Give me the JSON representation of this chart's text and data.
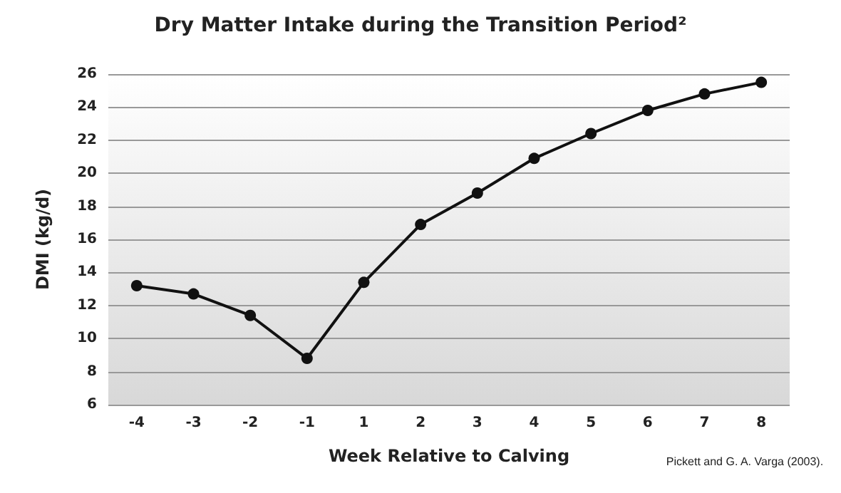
{
  "chart_data": {
    "type": "line",
    "title": "Dry Matter Intake during the Transition Period²",
    "xlabel": "Week Relative to Calving",
    "ylabel": "DMI (kg/d)",
    "categories": [
      "-4",
      "-3",
      "-2",
      "-1",
      "1",
      "2",
      "3",
      "4",
      "5",
      "6",
      "7",
      "8"
    ],
    "series": [
      {
        "color": "#111111",
        "values": [
          13.2,
          12.7,
          11.4,
          8.8,
          13.4,
          16.9,
          18.8,
          20.9,
          22.4,
          23.8,
          24.8,
          25.5
        ]
      }
    ],
    "ylim": [
      6,
      26
    ],
    "yticks": [
      6,
      8,
      10,
      12,
      14,
      16,
      18,
      20,
      22,
      24,
      26
    ],
    "grid": "y",
    "marker": "circle",
    "line_style": "solid",
    "annotations": [
      "Pickett and G. A. Varga (2003)."
    ]
  }
}
